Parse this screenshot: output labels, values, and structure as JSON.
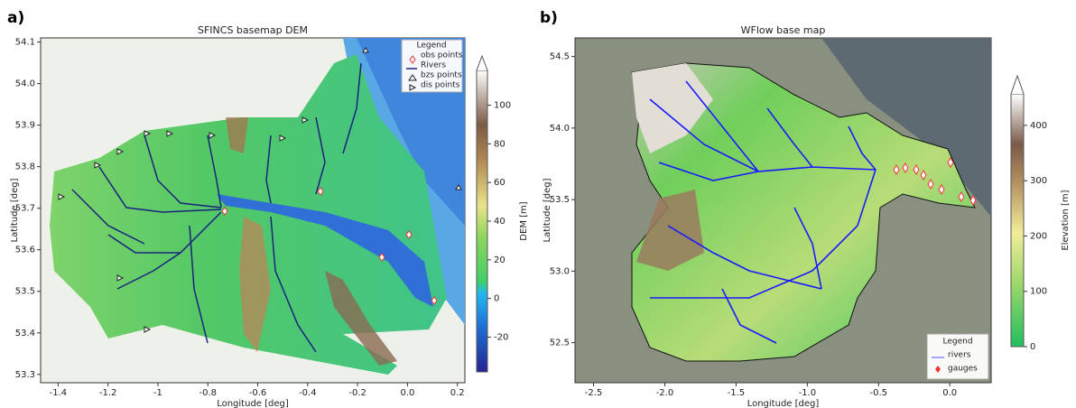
{
  "chart_data": [
    {
      "type": "map",
      "panel": "a)",
      "title": "SFINCS basemap DEM",
      "x_label": "Longitude [deg]",
      "y_label": "Latitude [deg]",
      "xlim": [
        -1.47,
        0.23
      ],
      "xticks": [
        -1.4,
        -1.2,
        -1.0,
        -0.8,
        -0.6,
        -0.4,
        -0.2,
        {
          "value": 0,
          "label": "0.0"
        },
        0.2
      ],
      "ylim": [
        53.28,
        54.11
      ],
      "yticks": [
        53.3,
        53.4,
        53.5,
        53.6,
        53.7,
        53.8,
        53.9,
        {
          "value": 54,
          "label": "54.0"
        },
        54.1
      ],
      "colorbar": {
        "label": "DEM [m]",
        "lim": [
          -38,
          118
        ],
        "ticks": [
          -20,
          0,
          20,
          40,
          60,
          80,
          100
        ]
      },
      "legend": {
        "title": "Legend",
        "entries": [
          "obs points",
          "Rivers",
          "bzs points",
          "dis points"
        ]
      }
    },
    {
      "type": "map",
      "panel": "b)",
      "title": "WFlow base map",
      "x_label": "Longitude [deg]",
      "y_label": "Latitude [deg]",
      "xlim": [
        -2.63,
        0.29
      ],
      "xticks": [
        -2.5,
        {
          "value": -2,
          "label": "-2.0"
        },
        -1.5,
        {
          "value": -1,
          "label": "-1.0"
        },
        -0.5,
        {
          "value": 0,
          "label": "0.0"
        }
      ],
      "ylim": [
        52.22,
        54.63
      ],
      "yticks": [
        52.5,
        {
          "value": 53,
          "label": "53.0"
        },
        53.5,
        {
          "value": 54,
          "label": "54.0"
        },
        54.5
      ],
      "colorbar": {
        "label": "Elevation [m]",
        "lim": [
          0,
          457
        ],
        "ticks": [
          0,
          100,
          200,
          300,
          400
        ]
      },
      "legend": {
        "title": "Legend",
        "entries": [
          "rivers",
          "gauges"
        ]
      }
    }
  ]
}
